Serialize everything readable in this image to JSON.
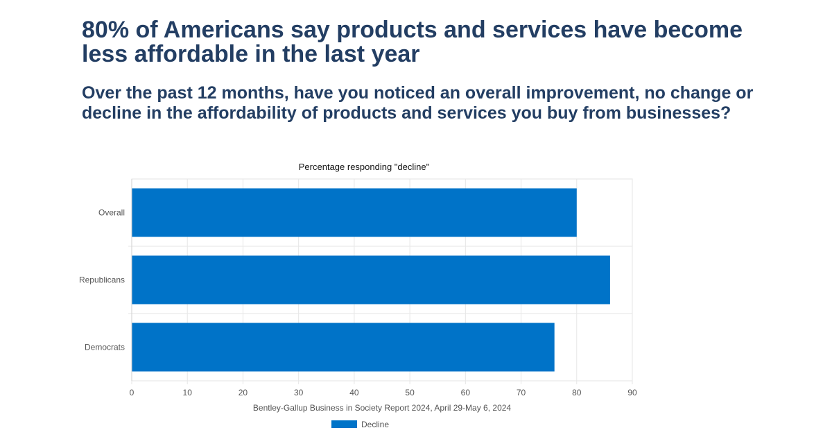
{
  "headline": "80% of Americans say products and services have become less affordable in the last year",
  "question": "Over the past 12 months, have you noticed an overall improvement, no change or decline in the affordability of products and services you buy from businesses?",
  "chart_data": {
    "type": "bar",
    "orientation": "horizontal",
    "title": "Percentage responding \"decline\"",
    "categories": [
      "Overall",
      "Republicans",
      "Democrats"
    ],
    "series": [
      {
        "name": "Decline",
        "values": [
          80,
          86,
          76
        ],
        "color": "#0073c8"
      }
    ],
    "xlim": [
      0,
      90
    ],
    "xticks": [
      0,
      10,
      20,
      30,
      40,
      50,
      60,
      70,
      80,
      90
    ],
    "source_note": "Bentley-Gallup Business in Society Report 2024, April 29-May 6, 2024",
    "grid": true,
    "legend_position": "bottom"
  }
}
